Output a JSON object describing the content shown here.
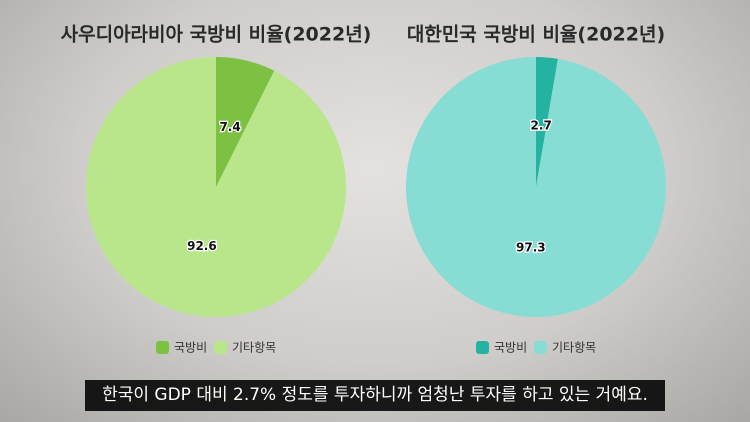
{
  "chart_data": [
    {
      "type": "pie",
      "title": "사우디아라비아 국방비 비율(2022년)",
      "categories": [
        "국방비",
        "기타항목"
      ],
      "values": [
        7.4,
        92.6
      ],
      "colors": [
        "#7dc142",
        "#b9e68b"
      ]
    },
    {
      "type": "pie",
      "title": "대한민국 국방비 비율(2022년)",
      "categories": [
        "국방비",
        "기타항목"
      ],
      "values": [
        2.7,
        97.3
      ],
      "colors": [
        "#25b3a1",
        "#87ddd3"
      ]
    }
  ],
  "caption": "한국이 GDP 대비 2.7% 정도를 투자하니까 엄청난 투자를 하고 있는 거예요."
}
